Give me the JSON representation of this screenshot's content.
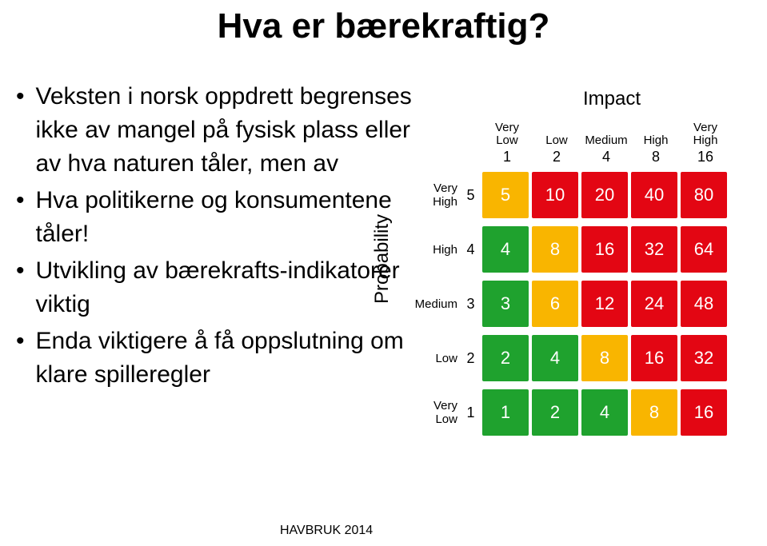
{
  "title": "Hva er bærekraftig?",
  "bullets": [
    "Veksten i norsk oppdrett begrenses ikke av mangel på fysisk plass eller av hva naturen tåler, men av",
    "Hva politikerne og konsumentene tåler!",
    "Utvikling av bærekrafts-indikatorer viktig",
    "Enda viktigere å få oppslutning om klare spilleregler"
  ],
  "footer": "HAVBRUK 2014",
  "matrix": {
    "impact_title": "Impact",
    "probability_title": "Probability",
    "col_labels": [
      "Very\nLow",
      "Low",
      "Medium",
      "High",
      "Very\nHigh"
    ],
    "col_weights": [
      "1",
      "2",
      "4",
      "8",
      "16"
    ],
    "row_labels": [
      "Very High",
      "High",
      "Medium",
      "Low",
      "Very Low"
    ],
    "row_weights": [
      "5",
      "4",
      "3",
      "2",
      "1"
    ],
    "cells": [
      [
        {
          "v": "5",
          "c": "#f9b500"
        },
        {
          "v": "10",
          "c": "#e30613"
        },
        {
          "v": "20",
          "c": "#e30613"
        },
        {
          "v": "40",
          "c": "#e30613"
        },
        {
          "v": "80",
          "c": "#e30613"
        }
      ],
      [
        {
          "v": "4",
          "c": "#1fa22e"
        },
        {
          "v": "8",
          "c": "#f9b500"
        },
        {
          "v": "16",
          "c": "#e30613"
        },
        {
          "v": "32",
          "c": "#e30613"
        },
        {
          "v": "64",
          "c": "#e30613"
        }
      ],
      [
        {
          "v": "3",
          "c": "#1fa22e"
        },
        {
          "v": "6",
          "c": "#f9b500"
        },
        {
          "v": "12",
          "c": "#e30613"
        },
        {
          "v": "24",
          "c": "#e30613"
        },
        {
          "v": "48",
          "c": "#e30613"
        }
      ],
      [
        {
          "v": "2",
          "c": "#1fa22e"
        },
        {
          "v": "4",
          "c": "#1fa22e"
        },
        {
          "v": "8",
          "c": "#f9b500"
        },
        {
          "v": "16",
          "c": "#e30613"
        },
        {
          "v": "32",
          "c": "#e30613"
        }
      ],
      [
        {
          "v": "1",
          "c": "#1fa22e"
        },
        {
          "v": "2",
          "c": "#1fa22e"
        },
        {
          "v": "4",
          "c": "#1fa22e"
        },
        {
          "v": "8",
          "c": "#f9b500"
        },
        {
          "v": "16",
          "c": "#e30613"
        }
      ]
    ]
  }
}
